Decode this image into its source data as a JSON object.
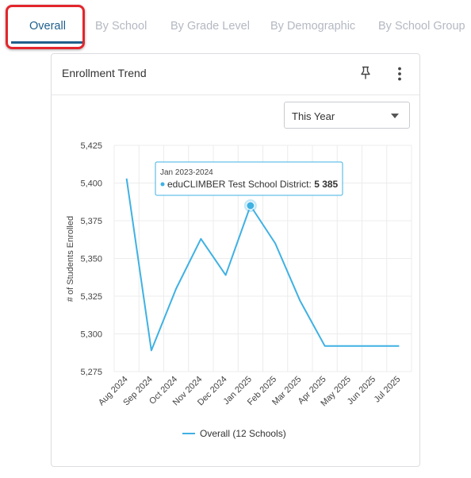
{
  "tabs": [
    {
      "label": "Overall",
      "active": true
    },
    {
      "label": "By School",
      "active": false
    },
    {
      "label": "By Grade Level",
      "active": false
    },
    {
      "label": "By Demographic",
      "active": false
    },
    {
      "label": "By School Group",
      "active": false
    }
  ],
  "card": {
    "title": "Enrollment Trend",
    "pin_icon": "pin-icon",
    "menu_icon": "more-vertical-icon"
  },
  "range_select": {
    "value": "This Year"
  },
  "chart_data": {
    "type": "line",
    "ylabel": "# of Students Enrolled",
    "xlabel": "",
    "ylim": [
      5275,
      5425
    ],
    "yticks": [
      "5,275",
      "5,300",
      "5,325",
      "5,350",
      "5,375",
      "5,400",
      "5,425"
    ],
    "ytick_values": [
      5275,
      5300,
      5325,
      5350,
      5375,
      5400,
      5425
    ],
    "categories": [
      "Aug 2024",
      "Sep 2024",
      "Oct 2024",
      "Nov 2024",
      "Dec 2024",
      "Jan 2025",
      "Feb 2025",
      "Mar 2025",
      "Apr 2025",
      "May 2025",
      "Jun 2025",
      "Jul 2025"
    ],
    "series": [
      {
        "name": "Overall (12 Schools)",
        "color": "#3fb1e3",
        "values": [
          5403,
          5289,
          5330,
          5363,
          5339,
          5385,
          5360,
          5322,
          5292,
          5292,
          5292,
          5292
        ]
      }
    ],
    "grid": true,
    "legend": "bottom",
    "tooltip": {
      "index": 5,
      "title": "Jan 2023-2024",
      "series_label": "eduCLIMBER Test School District:",
      "value": "5 385"
    }
  }
}
